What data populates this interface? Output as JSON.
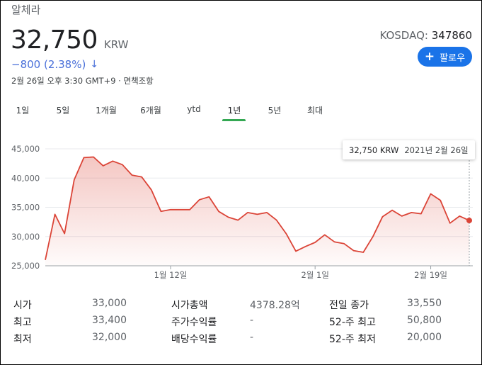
{
  "company_name": "알체라",
  "price": "32,750",
  "currency": "KRW",
  "change": "−800 (2.38%)",
  "change_arrow": "↓",
  "timestamp": "2월 26일 오후 3:30 GMT+9 · 면책조항",
  "exchange_label": "KOSDAQ:",
  "ticker": "347860",
  "follow_label": "팔로우",
  "colors": {
    "accent": "#1a73e8",
    "down": "#4a70d9",
    "line": "#db4437",
    "tab_active": "#34a853"
  },
  "range_tabs": [
    {
      "label": "1일"
    },
    {
      "label": "5일"
    },
    {
      "label": "1개월"
    },
    {
      "label": "6개월"
    },
    {
      "label": "ytd"
    },
    {
      "label": "1년",
      "active": true
    },
    {
      "label": "5년"
    },
    {
      "label": "최대"
    }
  ],
  "tooltip": {
    "value": "32,750 KRW",
    "date": "2021년 2월 26일"
  },
  "chart_data": {
    "type": "area",
    "ylim": [
      25000,
      45000
    ],
    "y_ticks": [
      {
        "value": 45000,
        "label": "45,000"
      },
      {
        "value": 40000,
        "label": "40,000"
      },
      {
        "value": 35000,
        "label": "35,000"
      },
      {
        "value": 30000,
        "label": "30,000"
      },
      {
        "value": 25000,
        "label": "25,000"
      }
    ],
    "x_ticks": [
      {
        "index": 13,
        "label": "1월 12일"
      },
      {
        "index": 28,
        "label": "2월 1일"
      },
      {
        "index": 40,
        "label": "2월 19일"
      }
    ],
    "values": [
      26000,
      33800,
      30500,
      39700,
      43500,
      43600,
      42100,
      42900,
      42300,
      40500,
      40200,
      38000,
      34300,
      34600,
      34600,
      34600,
      36300,
      36800,
      34300,
      33300,
      32800,
      34100,
      33800,
      34100,
      32800,
      30500,
      27500,
      28300,
      29000,
      30300,
      29100,
      28800,
      27600,
      27300,
      30000,
      33400,
      34500,
      33500,
      34100,
      33900,
      37300,
      36200,
      32300,
      33500,
      32750
    ]
  },
  "stats": [
    {
      "label": "시가",
      "value": "33,000"
    },
    {
      "label": "최고",
      "value": "33,400"
    },
    {
      "label": "최저",
      "value": "32,000"
    },
    {
      "label": "시가총액",
      "value": "4378.28억"
    },
    {
      "label": "주가수익률",
      "value": "-"
    },
    {
      "label": "배당수익률",
      "value": "-"
    },
    {
      "label": "전일 종가",
      "value": "33,550"
    },
    {
      "label": "52-주 최고",
      "value": "50,800"
    },
    {
      "label": "52-주 최저",
      "value": "20,000"
    }
  ]
}
